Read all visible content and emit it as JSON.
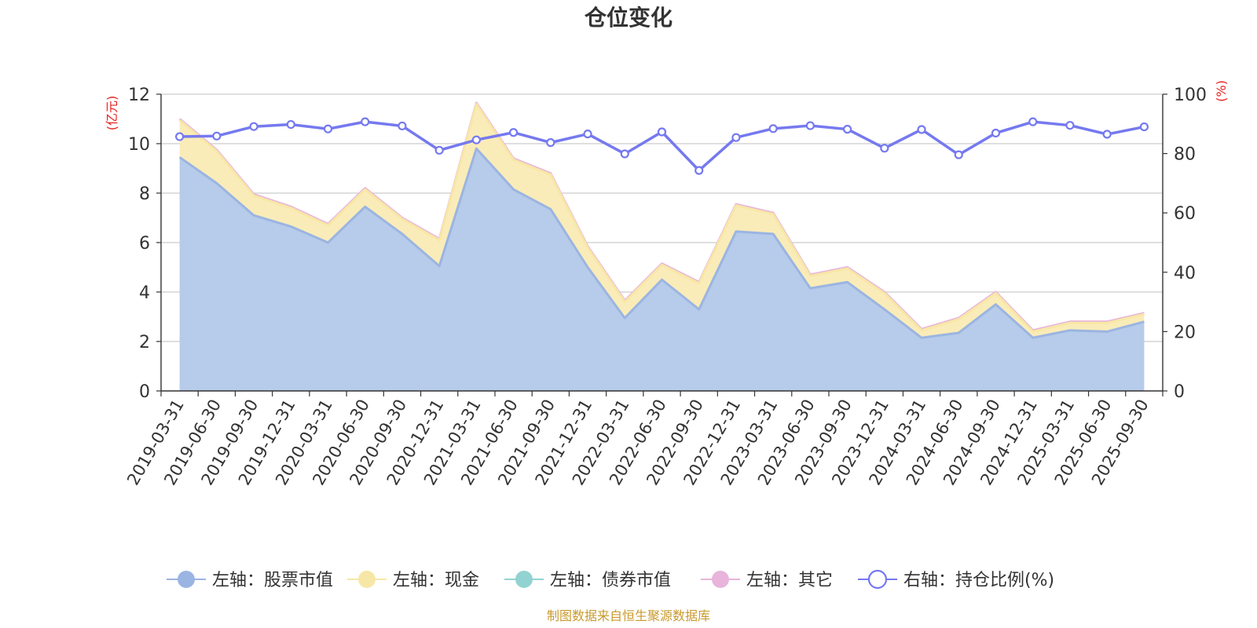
{
  "chart_data": {
    "type": "area",
    "title": "仓位变化",
    "left_unit": "(亿元)",
    "right_unit": "(%)",
    "categories": [
      "2019-03-31",
      "2019-06-30",
      "2019-09-30",
      "2019-12-31",
      "2020-03-31",
      "2020-06-30",
      "2020-09-30",
      "2020-12-31",
      "2021-03-31",
      "2021-06-30",
      "2021-09-30",
      "2021-12-31",
      "2022-03-31",
      "2022-06-30",
      "2022-09-30",
      "2022-12-31",
      "2023-03-31",
      "2023-06-30",
      "2023-09-30",
      "2023-12-31",
      "2024-03-31",
      "2024-06-30",
      "2024-09-30",
      "2024-12-31",
      "2025-03-31",
      "2025-06-30",
      "2025-09-30"
    ],
    "left_axis": {
      "min": 0,
      "max": 12,
      "ticks": [
        "0",
        "2",
        "4",
        "6",
        "8",
        "10",
        "12"
      ]
    },
    "right_axis": {
      "min": 0,
      "max": 100,
      "ticks": [
        "0",
        "20",
        "40",
        "60",
        "80",
        "100"
      ]
    },
    "series": [
      {
        "name": "左轴：股票市值",
        "axis": "left",
        "color": "#9bb5e2",
        "fill": "#b7cbea",
        "values": [
          9.45,
          8.4,
          7.1,
          6.65,
          6.0,
          7.45,
          6.35,
          5.05,
          9.8,
          8.15,
          7.35,
          5.0,
          2.95,
          4.5,
          3.3,
          6.45,
          6.35,
          4.15,
          4.4,
          3.3,
          2.15,
          2.35,
          3.5,
          2.15,
          2.45,
          2.4,
          2.8
        ]
      },
      {
        "name": "左轴：现金",
        "axis": "left",
        "color": "#f7e7a6",
        "fill": "#faecb8",
        "values": [
          1.5,
          1.3,
          0.8,
          0.75,
          0.7,
          0.7,
          0.6,
          1.05,
          1.8,
          1.2,
          1.4,
          0.8,
          0.65,
          0.6,
          1.05,
          1.05,
          0.8,
          0.5,
          0.55,
          0.65,
          0.3,
          0.55,
          0.45,
          0.25,
          0.3,
          0.35,
          0.3
        ]
      },
      {
        "name": "左轴：债券市值",
        "axis": "left",
        "color": "#92d3d1",
        "fill": "#92d3d1",
        "values": [
          0,
          0,
          0,
          0,
          0,
          0,
          0,
          0,
          0,
          0,
          0,
          0,
          0,
          0,
          0,
          0,
          0,
          0,
          0,
          0,
          0,
          0,
          0,
          0,
          0,
          0,
          0
        ]
      },
      {
        "name": "左轴：其它",
        "axis": "left",
        "color": "#e8b4db",
        "fill": "#e8b4db",
        "values": [
          0.05,
          0.05,
          0.05,
          0.05,
          0.05,
          0.05,
          0.05,
          0.05,
          0.05,
          0.05,
          0.05,
          0.05,
          0.05,
          0.05,
          0.05,
          0.05,
          0.05,
          0.05,
          0.05,
          0.05,
          0.05,
          0.05,
          0.05,
          0.05,
          0.05,
          0.05,
          0.05
        ]
      },
      {
        "name": "右轴：持仓比例(%)",
        "axis": "right",
        "color": "#7579ef",
        "fill": "#ffffff",
        "values": [
          85.7,
          85.9,
          89.1,
          89.8,
          88.3,
          90.7,
          89.3,
          81.1,
          84.6,
          87.1,
          83.7,
          86.6,
          79.9,
          87.3,
          74.3,
          85.4,
          88.4,
          89.4,
          88.2,
          81.8,
          88.1,
          79.6,
          86.9,
          90.7,
          89.5,
          86.5,
          89.0
        ]
      }
    ]
  },
  "footer": {
    "source": "制图数据来自恒生聚源数据库"
  }
}
